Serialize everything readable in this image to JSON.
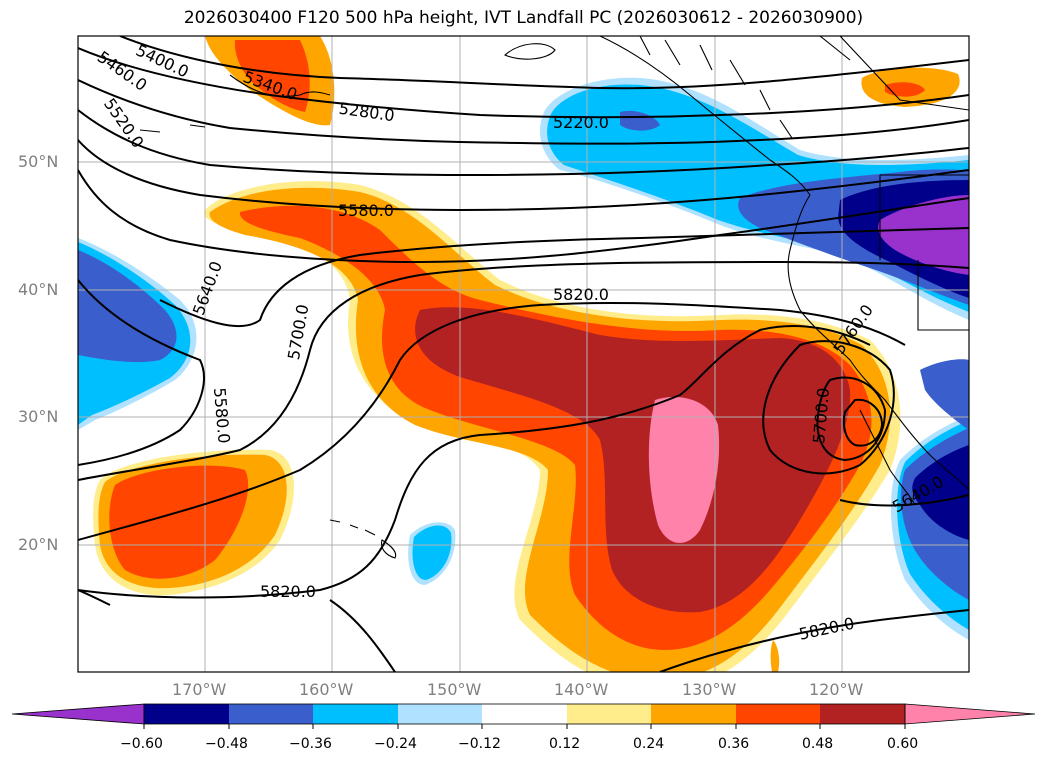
{
  "title": "2026030400 F120 500 hPa height, IVT Landfall PC (2026030612 - 2026030900)",
  "lat_labels": [
    "50°N",
    "40°N",
    "30°N",
    "20°N"
  ],
  "lon_labels": [
    "170°W",
    "160°W",
    "150°W",
    "140°W",
    "130°W",
    "120°W"
  ],
  "contour_labels": [
    "5400.0",
    "5460.0",
    "5520.0",
    "5340.0",
    "5280.0",
    "5220.0",
    "5580.0",
    "5640.0",
    "5700.0",
    "5580.0",
    "5820.0",
    "5760.0",
    "5700.0",
    "5640.0",
    "5820.0",
    "5820.0"
  ],
  "colorbar": {
    "ticks": [
      "−0.60",
      "−0.48",
      "−0.36",
      "−0.24",
      "−0.12",
      "0.12",
      "0.24",
      "0.36",
      "0.48",
      "0.60"
    ],
    "colors": [
      "#9932cc",
      "#00008b",
      "#3a5fcd",
      "#00bfff",
      "#b0e2ff",
      "#ffffff",
      "#ffec8b",
      "#ffa500",
      "#ff4500",
      "#b22222",
      "#ff82ab"
    ]
  }
}
